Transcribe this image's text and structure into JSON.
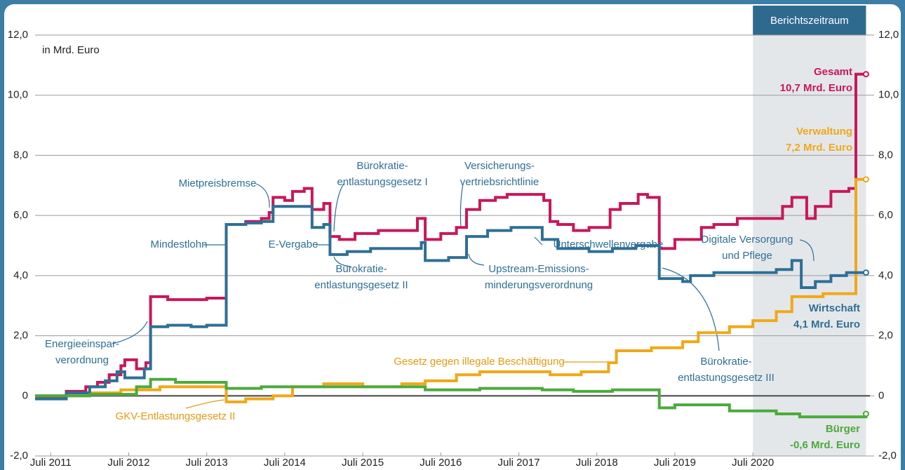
{
  "chart_data": {
    "type": "line",
    "unit_label": "in Mrd. Euro",
    "xlim": [
      2011.3,
      2022.0
    ],
    "xticks": [
      {
        "value": 2011.5,
        "label": "Juli 2011"
      },
      {
        "value": 2012.5,
        "label": "Juli 2012"
      },
      {
        "value": 2013.5,
        "label": "Juli 2013"
      },
      {
        "value": 2014.5,
        "label": "Juli 2014"
      },
      {
        "value": 2015.5,
        "label": "Juli 2015"
      },
      {
        "value": 2016.5,
        "label": "Juli 2016"
      },
      {
        "value": 2017.5,
        "label": "Juli 2017"
      },
      {
        "value": 2018.5,
        "label": "Juli 2018"
      },
      {
        "value": 2019.5,
        "label": "Juli 2019"
      },
      {
        "value": 2020.5,
        "label": "Juli 2020"
      }
    ],
    "ylim": [
      -2,
      12
    ],
    "yticks": [
      {
        "value": -2,
        "label": "-2,0"
      },
      0,
      {
        "value": 2,
        "label": "2,0"
      },
      {
        "value": 4,
        "label": "4,0"
      },
      {
        "value": 6,
        "label": "6,0"
      },
      {
        "value": 8,
        "label": "8,0"
      },
      {
        "value": 10,
        "label": "10,0"
      },
      {
        "value": 12,
        "label": "12,0"
      }
    ],
    "y2lim": [
      -2,
      12
    ],
    "y2ticks": [
      {
        "value": -2,
        "label": "-2,0"
      },
      0,
      {
        "value": 2,
        "label": "2,0"
      },
      {
        "value": 4,
        "label": "4,0"
      },
      {
        "value": 6,
        "label": "6,0"
      },
      {
        "value": 8,
        "label": "8,0"
      },
      {
        "value": 10,
        "label": "10,0"
      },
      {
        "value": 12,
        "label": "12,0"
      }
    ],
    "grid": true,
    "step": true,
    "shaded_region": {
      "label": "Berichtszeitraum",
      "xlim": [
        2020.5,
        2021.95
      ]
    },
    "series": [
      {
        "name": "Gesamt",
        "color": "#c8175a",
        "end_label": "10,7 Mrd. Euro",
        "x": [
          2011.3,
          2011.7,
          2011.95,
          2012.1,
          2012.25,
          2012.4,
          2012.45,
          2012.6,
          2012.72,
          2012.78,
          2013.0,
          2013.5,
          2013.75,
          2014.0,
          2014.2,
          2014.3,
          2014.35,
          2014.5,
          2014.6,
          2014.75,
          2014.85,
          2015.0,
          2015.08,
          2015.2,
          2015.4,
          2015.7,
          2016.2,
          2016.3,
          2016.5,
          2016.7,
          2016.83,
          2017.0,
          2017.2,
          2017.35,
          2017.82,
          2017.9,
          2018.0,
          2018.2,
          2018.4,
          2018.67,
          2018.8,
          2019.03,
          2019.15,
          2019.3,
          2019.5,
          2019.84,
          2020.0,
          2020.3,
          2020.88,
          2021.0,
          2021.19,
          2021.3,
          2021.5,
          2021.73,
          2021.82,
          2021.95
        ],
        "values": [
          -0.05,
          0.15,
          0.3,
          0.45,
          0.7,
          1.0,
          1.2,
          0.9,
          1.1,
          3.3,
          3.2,
          3.25,
          5.7,
          5.8,
          5.9,
          6.1,
          6.6,
          6.5,
          6.8,
          6.9,
          6.2,
          6.4,
          5.3,
          5.2,
          5.4,
          5.5,
          5.9,
          5.2,
          5.4,
          5.6,
          6.2,
          6.5,
          6.6,
          6.7,
          6.5,
          5.8,
          5.7,
          5.5,
          5.6,
          6.2,
          6.4,
          6.7,
          6.6,
          4.9,
          5.2,
          5.6,
          5.7,
          5.9,
          6.3,
          6.6,
          5.9,
          6.3,
          6.8,
          6.9,
          10.7,
          10.7
        ]
      },
      {
        "name": "Verwaltung",
        "color": "#f0a818",
        "end_label": "7,2 Mrd. Euro",
        "x": [
          2011.3,
          2012.0,
          2012.4,
          2012.9,
          2013.75,
          2014.0,
          2014.35,
          2014.6,
          2015.0,
          2015.5,
          2016.0,
          2016.3,
          2016.7,
          2017.0,
          2017.5,
          2017.9,
          2018.3,
          2018.65,
          2018.75,
          2019.2,
          2019.6,
          2019.8,
          2020.2,
          2020.5,
          2020.8,
          2021.0,
          2021.4,
          2021.82,
          2021.95
        ],
        "values": [
          0,
          0.1,
          0.2,
          0.3,
          -0.2,
          -0.1,
          0.0,
          0.3,
          0.4,
          0.3,
          0.4,
          0.5,
          0.7,
          0.8,
          0.8,
          0.7,
          0.8,
          1.1,
          1.5,
          1.6,
          1.8,
          2.1,
          2.3,
          2.5,
          2.8,
          3.3,
          3.4,
          7.2,
          7.2
        ]
      },
      {
        "name": "Wirtschaft",
        "color": "#2e6f96",
        "end_label": "4,1 Mrd. Euro",
        "x": [
          2011.3,
          2011.7,
          2012.0,
          2012.2,
          2012.35,
          2012.45,
          2012.7,
          2012.78,
          2013.0,
          2013.3,
          2013.5,
          2013.75,
          2014.0,
          2014.2,
          2014.35,
          2014.85,
          2015.0,
          2015.08,
          2015.3,
          2015.6,
          2016.0,
          2016.25,
          2016.3,
          2016.6,
          2016.83,
          2017.1,
          2017.4,
          2017.8,
          2018.0,
          2018.4,
          2018.7,
          2019.0,
          2019.3,
          2019.6,
          2019.7,
          2020.0,
          2020.5,
          2020.8,
          2021.0,
          2021.12,
          2021.3,
          2021.5,
          2021.7,
          2021.95
        ],
        "values": [
          -0.1,
          0.1,
          0.3,
          0.5,
          0.8,
          0.6,
          0.9,
          2.3,
          2.35,
          2.3,
          2.35,
          5.7,
          5.75,
          5.8,
          6.3,
          5.6,
          5.7,
          4.7,
          4.8,
          4.9,
          4.9,
          5.1,
          4.5,
          4.6,
          5.3,
          5.5,
          5.6,
          5.2,
          4.9,
          4.8,
          4.9,
          5.0,
          3.9,
          3.8,
          4.0,
          4.1,
          4.1,
          4.2,
          4.5,
          3.6,
          3.8,
          4.0,
          4.1,
          4.1
        ]
      },
      {
        "name": "Bürger",
        "color": "#4caa3c",
        "end_label": "-0,6 Mrd. Euro",
        "x": [
          2011.3,
          2012.0,
          2012.6,
          2012.78,
          2013.1,
          2013.75,
          2014.2,
          2015.0,
          2016.3,
          2017.0,
          2017.8,
          2018.2,
          2018.7,
          2019.3,
          2019.5,
          2020.2,
          2020.8,
          2021.1,
          2021.5,
          2021.95
        ],
        "values": [
          0,
          0.05,
          0.3,
          0.55,
          0.45,
          0.25,
          0.3,
          0.3,
          0.2,
          0.25,
          0.2,
          0.15,
          0.2,
          -0.4,
          -0.3,
          -0.5,
          -0.6,
          -0.7,
          -0.7,
          -0.6
        ]
      }
    ],
    "annotations": [
      [
        "Mietpreisbremse"
      ],
      [
        "Bürokratie-",
        "entlastungsgesetz I"
      ],
      [
        "Versicherungs-",
        "vertriebsrichtlinie"
      ],
      [
        "Mindestlohn"
      ],
      [
        "E-Vergabe"
      ],
      [
        "Unterschwellenvergabe"
      ],
      [
        "Digitale Versorgung",
        "und Pflege"
      ],
      [
        "Bürokratie-",
        "entlastungsgesetz II"
      ],
      [
        "Upstream-Emissions-",
        "minderungsverordnung"
      ],
      [
        "Energieeinspar-",
        "verordnung"
      ],
      [
        "Gesetz gegen illegale Beschäftigung"
      ],
      [
        "Bürokratie-",
        "entlastungsgesetz III"
      ],
      [
        "GKV-Entlastungsgesetz II"
      ]
    ]
  }
}
